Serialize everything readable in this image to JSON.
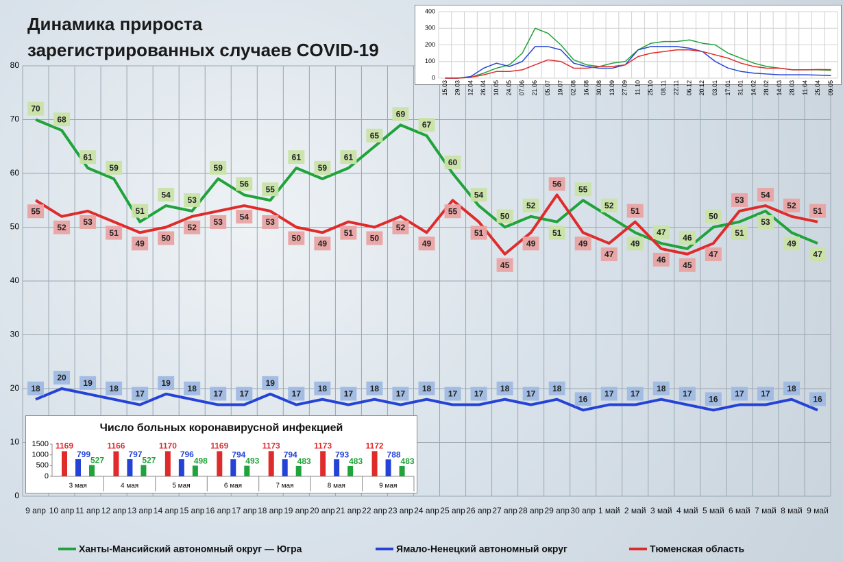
{
  "title": [
    "Динамика прироста",
    "зарегистрированных случаев COVID-19"
  ],
  "chart_data": [
    {
      "type": "line",
      "categories": [
        "9 апр",
        "10 апр",
        "11 апр",
        "12 апр",
        "13 апр",
        "14 апр",
        "15 апр",
        "16 апр",
        "17 апр",
        "18 апр",
        "19 апр",
        "20 апр",
        "21 апр",
        "22 апр",
        "23 апр",
        "24 апр",
        "25 апр",
        "26 апр",
        "27 апр",
        "28 апр",
        "29 апр",
        "30 апр",
        "1 май",
        "2 май",
        "3 май",
        "4 май",
        "5 май",
        "6 май",
        "7 май",
        "8 май",
        "9 май"
      ],
      "series": [
        {
          "name": "Ханты-Мансийский автономный округ — Югра",
          "color": "#1fa33a",
          "label_fill": "#c9e3a6",
          "values": [
            70,
            68,
            61,
            59,
            51,
            54,
            53,
            59,
            56,
            55,
            61,
            59,
            61,
            65,
            69,
            67,
            60,
            54,
            50,
            52,
            51,
            55,
            52,
            49,
            47,
            46,
            50,
            51,
            53,
            49,
            47
          ]
        },
        {
          "name": "Ямало-Ненецкий автономный округ",
          "color": "#2443d6",
          "label_fill": "#9fb9e2",
          "values": [
            18,
            20,
            19,
            18,
            17,
            19,
            18,
            17,
            17,
            19,
            17,
            18,
            17,
            18,
            17,
            18,
            17,
            17,
            18,
            17,
            18,
            16,
            17,
            17,
            18,
            17,
            16,
            17,
            17,
            18,
            16
          ]
        },
        {
          "name": "Тюменская область",
          "color": "#e02b2b",
          "label_fill": "#e9a3a3",
          "values": [
            55,
            52,
            53,
            51,
            49,
            50,
            52,
            53,
            54,
            53,
            50,
            49,
            51,
            50,
            52,
            49,
            55,
            51,
            45,
            49,
            56,
            49,
            47,
            51,
            46,
            45,
            47,
            53,
            54,
            52,
            51
          ]
        }
      ],
      "ylim": [
        0,
        80
      ],
      "yticks": [
        0,
        10,
        20,
        30,
        40,
        50,
        60,
        70,
        80
      ],
      "grid": true
    },
    {
      "type": "line",
      "categories": [
        "15.03",
        "29.03",
        "12.04",
        "26.04",
        "10.05",
        "24.05",
        "07.06",
        "21.06",
        "05.07",
        "19.07",
        "02.08",
        "16.08",
        "30.08",
        "13.09",
        "27.09",
        "11.10",
        "25.10",
        "08.11",
        "22.11",
        "06.12",
        "20.12",
        "03.01",
        "17.01",
        "31.01",
        "14.02",
        "28.02",
        "14.03",
        "28.03",
        "11.04",
        "25.04",
        "09.05"
      ],
      "series": [
        {
          "color": "#1fa33a",
          "values": [
            0,
            0,
            5,
            30,
            60,
            80,
            150,
            300,
            270,
            200,
            110,
            80,
            70,
            90,
            100,
            170,
            210,
            220,
            220,
            230,
            210,
            200,
            150,
            120,
            90,
            70,
            60,
            50,
            50,
            50,
            47
          ]
        },
        {
          "color": "#2443d6",
          "values": [
            0,
            0,
            10,
            60,
            90,
            70,
            100,
            190,
            190,
            170,
            90,
            70,
            60,
            60,
            80,
            170,
            190,
            190,
            190,
            180,
            160,
            100,
            60,
            40,
            30,
            25,
            20,
            20,
            20,
            18,
            16
          ]
        },
        {
          "color": "#e02b2b",
          "values": [
            0,
            0,
            5,
            20,
            40,
            40,
            50,
            80,
            110,
            100,
            60,
            60,
            70,
            70,
            80,
            130,
            150,
            160,
            170,
            170,
            160,
            140,
            120,
            90,
            70,
            60,
            60,
            50,
            50,
            52,
            51
          ]
        }
      ],
      "ylim": [
        0,
        400
      ],
      "yticks": [
        0,
        100,
        200,
        300,
        400
      ],
      "grid": true
    },
    {
      "type": "bar",
      "title": "Число больных  коронавирусной  инфекцией",
      "categories": [
        "3 мая",
        "4 мая",
        "5 мая",
        "6 мая",
        "7 мая",
        "8 мая",
        "9 мая"
      ],
      "series": [
        {
          "color": "#e02b2b",
          "values": [
            1169,
            1166,
            1170,
            1169,
            1173,
            1173,
            1172
          ]
        },
        {
          "color": "#2443d6",
          "values": [
            799,
            797,
            796,
            794,
            794,
            793,
            788
          ]
        },
        {
          "color": "#1fa33a",
          "values": [
            527,
            527,
            498,
            493,
            483,
            483,
            483
          ]
        }
      ],
      "ylim": [
        0,
        1500
      ],
      "yticks": [
        0,
        500,
        1000,
        1500
      ]
    }
  ]
}
